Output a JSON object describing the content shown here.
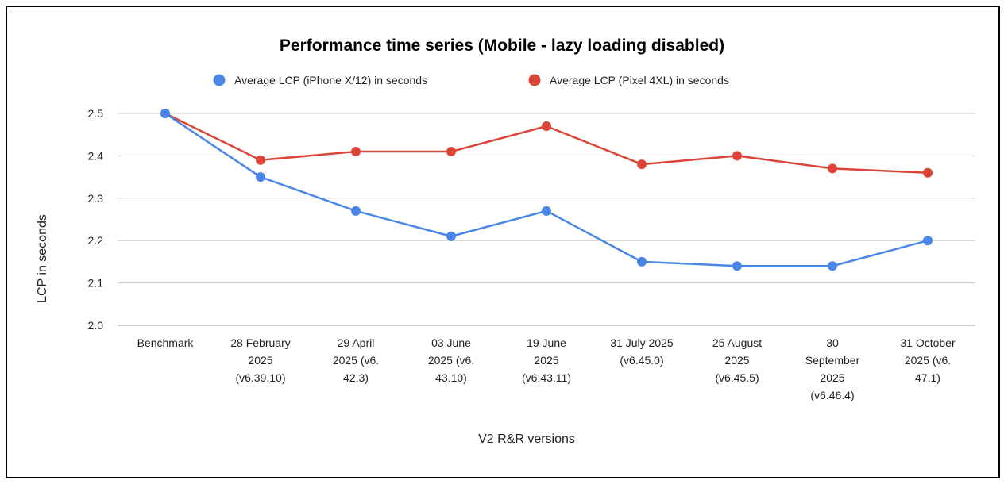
{
  "chart_data": {
    "type": "line",
    "title": "Performance time series (Mobile - lazy loading disabled)",
    "xlabel": "V2 R&R versions",
    "ylabel": "LCP in seconds",
    "ylim": [
      2.0,
      2.5
    ],
    "yticks": [
      "2.0",
      "2.1",
      "2.2",
      "2.3",
      "2.4",
      "2.5"
    ],
    "grid": true,
    "legend_position": "top",
    "categories": [
      [
        "Benchmark"
      ],
      [
        "28 February",
        "2025",
        "(v6.39.10)"
      ],
      [
        "29 April",
        "2025 (v6.",
        "42.3)"
      ],
      [
        "03 June",
        "2025 (v6.",
        "43.10)"
      ],
      [
        "19 June",
        "2025",
        "(v6.43.11)"
      ],
      [
        "31 July 2025",
        "(v6.45.0)"
      ],
      [
        "25 August",
        "2025",
        "(v6.45.5)"
      ],
      [
        "30",
        "September",
        "2025",
        "(v6.46.4)"
      ],
      [
        "31 October",
        "2025 (v6.",
        "47.1)"
      ]
    ],
    "series": [
      {
        "name": "Average LCP (iPhone X/12) in seconds",
        "color": "#4a86e8",
        "values": [
          2.5,
          2.35,
          2.27,
          2.21,
          2.27,
          2.15,
          2.14,
          2.14,
          2.2
        ]
      },
      {
        "name": "Average LCP (Pixel 4XL) in seconds",
        "color": "#db4437",
        "values": [
          2.5,
          2.39,
          2.41,
          2.41,
          2.47,
          2.38,
          2.4,
          2.37,
          2.36
        ]
      }
    ]
  }
}
